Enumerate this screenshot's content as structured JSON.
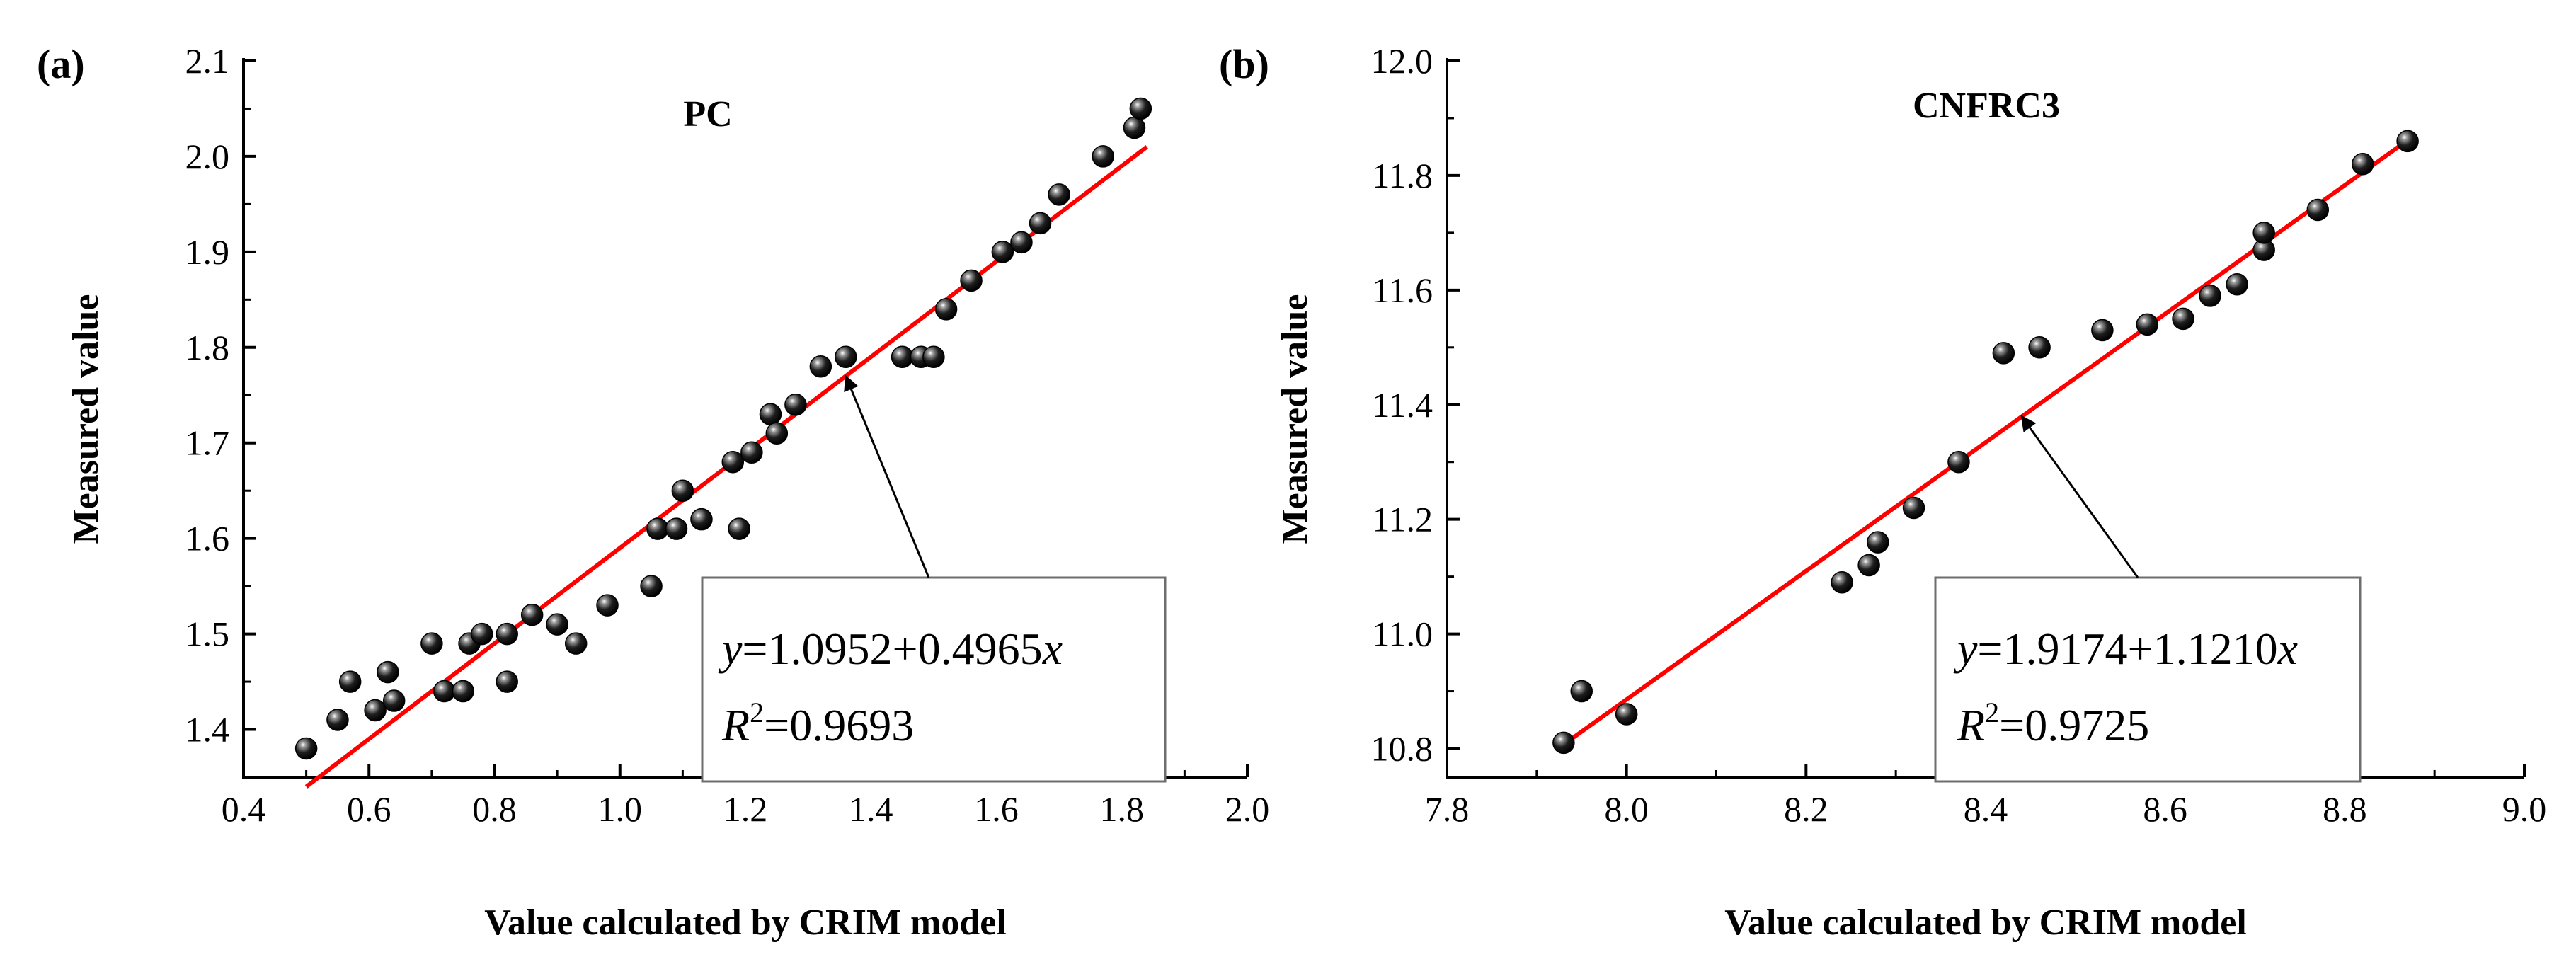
{
  "chart_data": [
    {
      "type": "scatter",
      "panel_label": "(a)",
      "title": "PC",
      "xlabel": "Value calculated by CRIM model",
      "ylabel": "Measured value",
      "xlim": [
        0.4,
        2.0
      ],
      "ylim": [
        1.35,
        2.1
      ],
      "xticks": [
        0.4,
        0.6,
        0.8,
        1.0,
        1.2,
        1.4,
        1.6,
        1.8,
        2.0
      ],
      "xtick_labels": [
        "0.4",
        "0.6",
        "0.8",
        "1.0",
        "1.2",
        "1.4",
        "1.6",
        "1.8",
        "2.0"
      ],
      "yticks": [
        1.4,
        1.5,
        1.6,
        1.7,
        1.8,
        1.9,
        2.0,
        2.1
      ],
      "ytick_labels": [
        "1.4",
        "1.5",
        "1.6",
        "1.7",
        "1.8",
        "1.9",
        "2.0",
        "2.1"
      ],
      "points": [
        [
          0.5,
          1.38
        ],
        [
          0.55,
          1.41
        ],
        [
          0.57,
          1.45
        ],
        [
          0.61,
          1.42
        ],
        [
          0.63,
          1.46
        ],
        [
          0.64,
          1.43
        ],
        [
          0.7,
          1.49
        ],
        [
          0.72,
          1.44
        ],
        [
          0.75,
          1.44
        ],
        [
          0.76,
          1.49
        ],
        [
          0.78,
          1.5
        ],
        [
          0.82,
          1.5
        ],
        [
          0.82,
          1.45
        ],
        [
          0.86,
          1.52
        ],
        [
          0.9,
          1.51
        ],
        [
          0.93,
          1.49
        ],
        [
          0.98,
          1.53
        ],
        [
          1.05,
          1.55
        ],
        [
          1.06,
          1.61
        ],
        [
          1.09,
          1.61
        ],
        [
          1.1,
          1.65
        ],
        [
          1.13,
          1.62
        ],
        [
          1.18,
          1.68
        ],
        [
          1.19,
          1.61
        ],
        [
          1.21,
          1.69
        ],
        [
          1.24,
          1.73
        ],
        [
          1.25,
          1.71
        ],
        [
          1.28,
          1.74
        ],
        [
          1.32,
          1.78
        ],
        [
          1.36,
          1.79
        ],
        [
          1.45,
          1.79
        ],
        [
          1.48,
          1.79
        ],
        [
          1.5,
          1.79
        ],
        [
          1.52,
          1.84
        ],
        [
          1.56,
          1.87
        ],
        [
          1.61,
          1.9
        ],
        [
          1.64,
          1.91
        ],
        [
          1.67,
          1.93
        ],
        [
          1.7,
          1.96
        ],
        [
          1.77,
          2.0
        ],
        [
          1.82,
          2.03
        ],
        [
          1.83,
          2.05
        ]
      ],
      "fit_line": {
        "x": [
          0.5,
          1.84
        ],
        "y": [
          1.34,
          2.01
        ],
        "color": "#ff0000"
      },
      "annotation": {
        "eq_prefix": "y",
        "eq_body": "=1.0952+0.4965",
        "eq_var": "x",
        "r2_prefix": "R",
        "r2_sup": "2",
        "r2_value": "=0.9693",
        "arrow_target": [
          1.36,
          1.77
        ]
      }
    },
    {
      "type": "scatter",
      "panel_label": "(b)",
      "title": "CNFRC3",
      "xlabel": "Value calculated by CRIM model",
      "ylabel": "Measured value",
      "xlim": [
        7.8,
        9.0
      ],
      "ylim": [
        10.75,
        12.0
      ],
      "xticks": [
        7.8,
        8.0,
        8.2,
        8.4,
        8.6,
        8.8,
        9.0
      ],
      "xtick_labels": [
        "7.8",
        "8.0",
        "8.2",
        "8.4",
        "8.6",
        "8.8",
        "9.0"
      ],
      "yticks": [
        10.8,
        11.0,
        11.2,
        11.4,
        11.6,
        11.8,
        12.0
      ],
      "ytick_labels": [
        "10.8",
        "11.0",
        "11.2",
        "11.4",
        "11.6",
        "11.8",
        "12.0"
      ],
      "points": [
        [
          7.93,
          10.81
        ],
        [
          7.95,
          10.9
        ],
        [
          8.0,
          10.86
        ],
        [
          8.24,
          11.09
        ],
        [
          8.27,
          11.12
        ],
        [
          8.28,
          11.16
        ],
        [
          8.32,
          11.22
        ],
        [
          8.37,
          11.3
        ],
        [
          8.42,
          11.49
        ],
        [
          8.46,
          11.5
        ],
        [
          8.53,
          11.53
        ],
        [
          8.58,
          11.54
        ],
        [
          8.62,
          11.55
        ],
        [
          8.65,
          11.59
        ],
        [
          8.68,
          11.61
        ],
        [
          8.71,
          11.67
        ],
        [
          8.71,
          11.7
        ],
        [
          8.77,
          11.74
        ],
        [
          8.82,
          11.82
        ],
        [
          8.87,
          11.86
        ]
      ],
      "fit_line": {
        "x": [
          7.93,
          8.875
        ],
        "y": [
          10.807,
          11.867
        ],
        "color": "#ff0000"
      },
      "annotation": {
        "eq_prefix": "y",
        "eq_body": "=1.9174+1.1210",
        "eq_var": "x",
        "r2_prefix": "R",
        "r2_sup": "2",
        "r2_value": "=0.9725",
        "arrow_target": [
          8.44,
          11.38
        ]
      }
    }
  ]
}
